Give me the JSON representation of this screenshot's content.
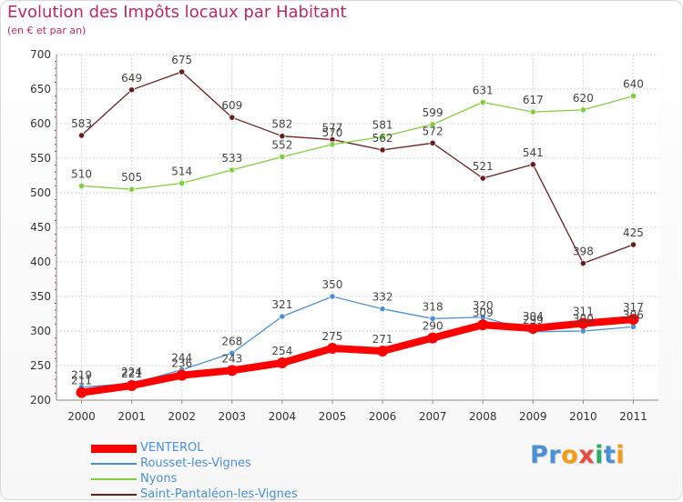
{
  "chart_data": {
    "type": "line",
    "title": "Evolution des Impôts locaux par Habitant",
    "subtitle": "(en € et par an)",
    "xlabel": "",
    "ylabel": "",
    "categories": [
      "2000",
      "2001",
      "2002",
      "2003",
      "2004",
      "2005",
      "2006",
      "2007",
      "2008",
      "2009",
      "2010",
      "2011"
    ],
    "ylim": [
      200,
      700
    ],
    "yticks": [
      200,
      250,
      300,
      350,
      400,
      450,
      500,
      550,
      600,
      650,
      700
    ],
    "grid": true,
    "legend_position": "bottom-left",
    "series": [
      {
        "name": "VENTEROL",
        "color": "#ff0000",
        "values": [
          211,
          221,
          236,
          243,
          254,
          275,
          271,
          290,
          309,
          304,
          311,
          317
        ]
      },
      {
        "name": "Rousset-les-Vignes",
        "color": "#4a90d9",
        "values": [
          219,
          224,
          244,
          268,
          321,
          350,
          332,
          318,
          320,
          299,
          300,
          306
        ]
      },
      {
        "name": "Nyons",
        "color": "#7fd13b",
        "values": [
          510,
          505,
          514,
          533,
          552,
          570,
          581,
          599,
          631,
          617,
          620,
          640
        ]
      },
      {
        "name": "Saint-Pantaléon-les-Vignes",
        "color": "#6b1d1d",
        "values": [
          583,
          649,
          675,
          609,
          582,
          577,
          562,
          572,
          521,
          541,
          398,
          425
        ]
      }
    ]
  },
  "logo": {
    "letters": [
      "P",
      "r",
      "o",
      "x",
      "i",
      "t",
      "i"
    ],
    "colors": [
      "#4a90d9",
      "#4a90d9",
      "#f39c12",
      "#e74c3c",
      "#27ae60",
      "#4a90d9",
      "#f39c12"
    ]
  }
}
